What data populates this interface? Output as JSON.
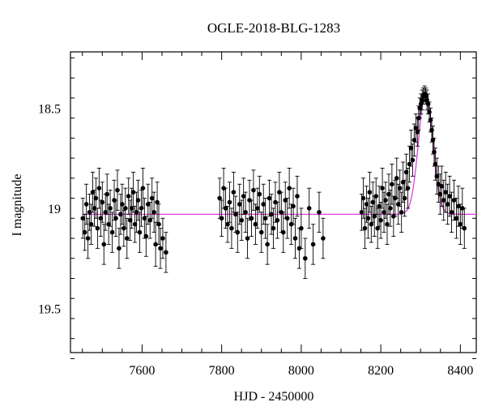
{
  "chart_data": {
    "type": "scatter",
    "title": "OGLE-2018-BLG-1283",
    "xlabel": "HJD - 2450000",
    "ylabel": "I magnitude",
    "xlim": [
      7420,
      8440
    ],
    "ylim": [
      19.72,
      18.22
    ],
    "y_inverted": true,
    "x_ticks": [
      7600,
      7800,
      8000,
      8200,
      8400
    ],
    "y_ticks": [
      18.5,
      19,
      19.5
    ],
    "y_tick_labels": [
      "18.5",
      "19",
      "19.5"
    ],
    "grid": false,
    "series": [
      {
        "kind": "points",
        "color": "#000000",
        "points": [
          [
            7451,
            19.05,
            0.1
          ],
          [
            7456,
            19.12,
            0.09
          ],
          [
            7460,
            18.98,
            0.1
          ],
          [
            7464,
            19.15,
            0.1
          ],
          [
            7468,
            19.02,
            0.09
          ],
          [
            7472,
            19.08,
            0.1
          ],
          [
            7476,
            18.92,
            0.1
          ],
          [
            7480,
            19.0,
            0.09
          ],
          [
            7484,
            18.95,
            0.1
          ],
          [
            7488,
            19.1,
            0.1
          ],
          [
            7492,
            18.9,
            0.1
          ],
          [
            7496,
            19.05,
            0.09
          ],
          [
            7500,
            18.97,
            0.1
          ],
          [
            7504,
            19.18,
            0.1
          ],
          [
            7508,
            19.02,
            0.09
          ],
          [
            7512,
            18.93,
            0.1
          ],
          [
            7516,
            19.08,
            0.1
          ],
          [
            7520,
            19.0,
            0.09
          ],
          [
            7525,
            19.12,
            0.1
          ],
          [
            7530,
            18.96,
            0.1
          ],
          [
            7534,
            19.05,
            0.09
          ],
          [
            7538,
            18.91,
            0.1
          ],
          [
            7542,
            19.2,
            0.1
          ],
          [
            7546,
            19.03,
            0.1
          ],
          [
            7550,
            18.98,
            0.1
          ],
          [
            7554,
            19.1,
            0.09
          ],
          [
            7558,
            19.0,
            0.1
          ],
          [
            7562,
            19.15,
            0.1
          ],
          [
            7566,
            18.94,
            0.09
          ],
          [
            7570,
            19.06,
            0.1
          ],
          [
            7574,
            19.0,
            0.1
          ],
          [
            7578,
            18.92,
            0.1
          ],
          [
            7582,
            19.08,
            0.09
          ],
          [
            7586,
            19.02,
            0.1
          ],
          [
            7590,
            18.96,
            0.1
          ],
          [
            7594,
            19.12,
            0.1
          ],
          [
            7598,
            19.0,
            0.09
          ],
          [
            7602,
            18.9,
            0.1
          ],
          [
            7606,
            19.05,
            0.1
          ],
          [
            7610,
            19.14,
            0.1
          ],
          [
            7615,
            18.98,
            0.1
          ],
          [
            7620,
            19.06,
            0.09
          ],
          [
            7625,
            18.95,
            0.1
          ],
          [
            7630,
            19.02,
            0.1
          ],
          [
            7634,
            19.18,
            0.11
          ],
          [
            7638,
            18.97,
            0.1
          ],
          [
            7642,
            19.08,
            0.1
          ],
          [
            7646,
            19.2,
            0.1
          ],
          [
            7652,
            19.15,
            0.1
          ],
          [
            7660,
            19.22,
            0.1
          ],
          [
            7795,
            18.95,
            0.1
          ],
          [
            7800,
            19.05,
            0.09
          ],
          [
            7805,
            18.9,
            0.1
          ],
          [
            7810,
            19.0,
            0.1
          ],
          [
            7815,
            19.08,
            0.09
          ],
          [
            7820,
            18.97,
            0.1
          ],
          [
            7825,
            19.1,
            0.1
          ],
          [
            7830,
            18.92,
            0.1
          ],
          [
            7835,
            19.03,
            0.09
          ],
          [
            7840,
            19.12,
            0.1
          ],
          [
            7845,
            18.98,
            0.1
          ],
          [
            7850,
            19.06,
            0.1
          ],
          [
            7855,
            18.94,
            0.09
          ],
          [
            7860,
            19.02,
            0.1
          ],
          [
            7865,
            19.15,
            0.1
          ],
          [
            7870,
            18.96,
            0.1
          ],
          [
            7875,
            19.05,
            0.09
          ],
          [
            7880,
            18.91,
            0.1
          ],
          [
            7885,
            19.08,
            0.1
          ],
          [
            7890,
            19.0,
            0.1
          ],
          [
            7895,
            18.93,
            0.09
          ],
          [
            7900,
            19.12,
            0.1
          ],
          [
            7905,
            18.98,
            0.1
          ],
          [
            7910,
            19.05,
            0.1
          ],
          [
            7915,
            19.18,
            0.1
          ],
          [
            7920,
            18.95,
            0.09
          ],
          [
            7925,
            19.03,
            0.1
          ],
          [
            7930,
            19.1,
            0.1
          ],
          [
            7935,
            18.97,
            0.1
          ],
          [
            7940,
            19.06,
            0.09
          ],
          [
            7945,
            18.92,
            0.1
          ],
          [
            7950,
            19.02,
            0.1
          ],
          [
            7955,
            19.12,
            0.1
          ],
          [
            7960,
            18.96,
            0.09
          ],
          [
            7965,
            19.05,
            0.1
          ],
          [
            7970,
            18.9,
            0.1
          ],
          [
            7975,
            19.08,
            0.1
          ],
          [
            7980,
            18.99,
            0.09
          ],
          [
            7985,
            19.15,
            0.1
          ],
          [
            7990,
            18.94,
            0.1
          ],
          [
            7995,
            19.2,
            0.1
          ],
          [
            8000,
            19.1,
            0.1
          ],
          [
            8010,
            19.25,
            0.1
          ],
          [
            8020,
            19.0,
            0.1
          ],
          [
            8030,
            19.18,
            0.1
          ],
          [
            8045,
            19.02,
            0.1
          ],
          [
            8055,
            19.15,
            0.1
          ],
          [
            8152,
            19.02,
            0.09
          ],
          [
            8156,
            18.95,
            0.1
          ],
          [
            8160,
            19.1,
            0.1
          ],
          [
            8164,
            18.98,
            0.09
          ],
          [
            8168,
            19.05,
            0.1
          ],
          [
            8172,
            18.92,
            0.1
          ],
          [
            8176,
            19.08,
            0.09
          ],
          [
            8180,
            18.97,
            0.1
          ],
          [
            8184,
            19.04,
            0.1
          ],
          [
            8188,
            18.94,
            0.09
          ],
          [
            8192,
            19.1,
            0.1
          ],
          [
            8196,
            18.99,
            0.1
          ],
          [
            8200,
            19.06,
            0.09
          ],
          [
            8204,
            18.9,
            0.1
          ],
          [
            8208,
            19.02,
            0.1
          ],
          [
            8212,
            18.96,
            0.09
          ],
          [
            8216,
            19.08,
            0.1
          ],
          [
            8220,
            18.93,
            0.1
          ],
          [
            8224,
            19.0,
            0.09
          ],
          [
            8228,
            18.88,
            0.1
          ],
          [
            8232,
            19.04,
            0.1
          ],
          [
            8236,
            18.95,
            0.09
          ],
          [
            8240,
            18.85,
            0.1
          ],
          [
            8244,
            18.98,
            0.1
          ],
          [
            8248,
            18.9,
            0.09
          ],
          [
            8252,
            19.02,
            0.1
          ],
          [
            8256,
            18.87,
            0.1
          ],
          [
            8260,
            18.95,
            0.09
          ],
          [
            8264,
            18.82,
            0.09
          ],
          [
            8268,
            18.9,
            0.1
          ],
          [
            8272,
            18.78,
            0.09
          ],
          [
            8276,
            18.7,
            0.09
          ],
          [
            8280,
            18.76,
            0.08
          ],
          [
            8284,
            18.66,
            0.08
          ],
          [
            8288,
            18.6,
            0.07
          ],
          [
            8292,
            18.62,
            0.07
          ],
          [
            8295,
            18.55,
            0.06
          ],
          [
            8298,
            18.5,
            0.05
          ],
          [
            8301,
            18.48,
            0.05
          ],
          [
            8304,
            18.46,
            0.05
          ],
          [
            8307,
            18.44,
            0.04
          ],
          [
            8310,
            18.43,
            0.04
          ],
          [
            8313,
            18.44,
            0.04
          ],
          [
            8316,
            18.46,
            0.05
          ],
          [
            8319,
            18.48,
            0.05
          ],
          [
            8322,
            18.52,
            0.05
          ],
          [
            8325,
            18.56,
            0.06
          ],
          [
            8328,
            18.61,
            0.06
          ],
          [
            8331,
            18.66,
            0.07
          ],
          [
            8334,
            18.72,
            0.07
          ],
          [
            8337,
            18.78,
            0.08
          ],
          [
            8341,
            18.84,
            0.09
          ],
          [
            8345,
            18.88,
            0.09
          ],
          [
            8349,
            18.93,
            0.1
          ],
          [
            8353,
            18.89,
            0.1
          ],
          [
            8358,
            18.96,
            0.1
          ],
          [
            8363,
            18.92,
            0.1
          ],
          [
            8368,
            18.98,
            0.1
          ],
          [
            8373,
            18.94,
            0.1
          ],
          [
            8378,
            19.02,
            0.1
          ],
          [
            8384,
            18.96,
            0.1
          ],
          [
            8390,
            19.05,
            0.1
          ],
          [
            8395,
            18.99,
            0.1
          ],
          [
            8400,
            19.08,
            0.1
          ],
          [
            8405,
            19.0,
            0.1
          ],
          [
            8410,
            19.1,
            0.1
          ]
        ]
      },
      {
        "kind": "model",
        "color": "#e040e0",
        "t0": 8313,
        "base": 19.03,
        "amp": 0.61,
        "tE": 18
      }
    ]
  }
}
